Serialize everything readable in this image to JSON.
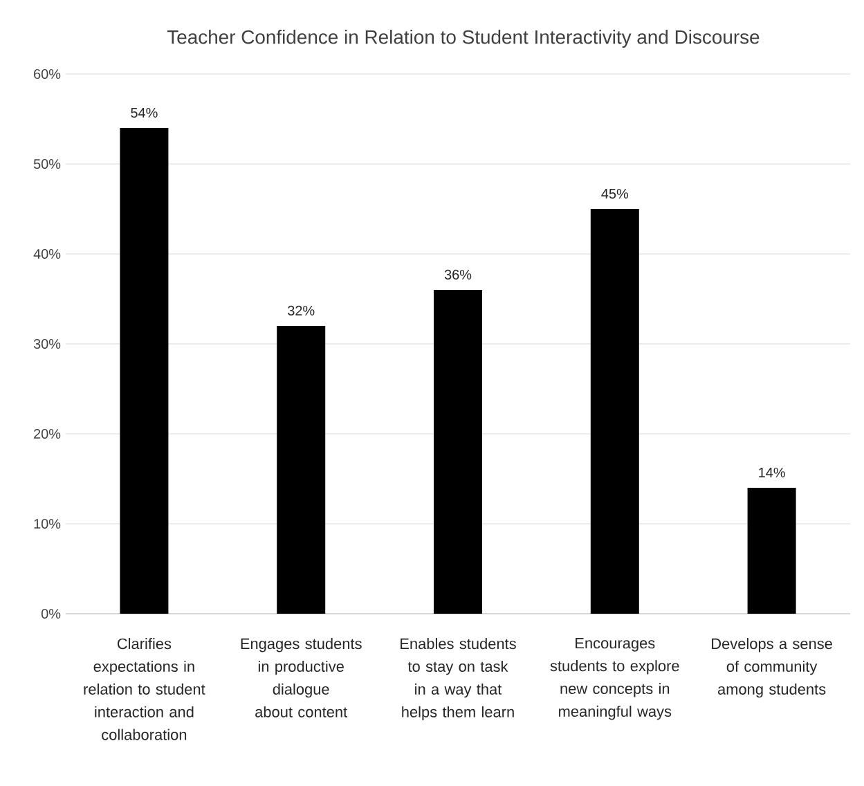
{
  "chart_data": {
    "type": "bar",
    "title": "Teacher Confidence in Relation to Student Interactivity and Discourse",
    "categories": [
      "Clarifies expectations in relation to student interaction and collaboration",
      "Engages students in productive dialogue about content",
      "Enables students to stay on task in a way that helps them learn",
      "Encourages students to explore new concepts in meaningful ways",
      "Develops a sense of community among students"
    ],
    "values": [
      54,
      32,
      36,
      45,
      14
    ],
    "value_labels": [
      "54%",
      "32%",
      "36%",
      "45%",
      "14%"
    ],
    "color": "#000000",
    "ylim": [
      0,
      60
    ],
    "yticks": [
      {
        "value": 0,
        "label": "0%"
      },
      {
        "value": 10,
        "label": "10%"
      },
      {
        "value": 20,
        "label": "20%"
      },
      {
        "value": 30,
        "label": "30%"
      },
      {
        "value": 40,
        "label": "40%"
      },
      {
        "value": 50,
        "label": "50%"
      },
      {
        "value": 60,
        "label": "60%"
      }
    ],
    "grid": "y"
  }
}
